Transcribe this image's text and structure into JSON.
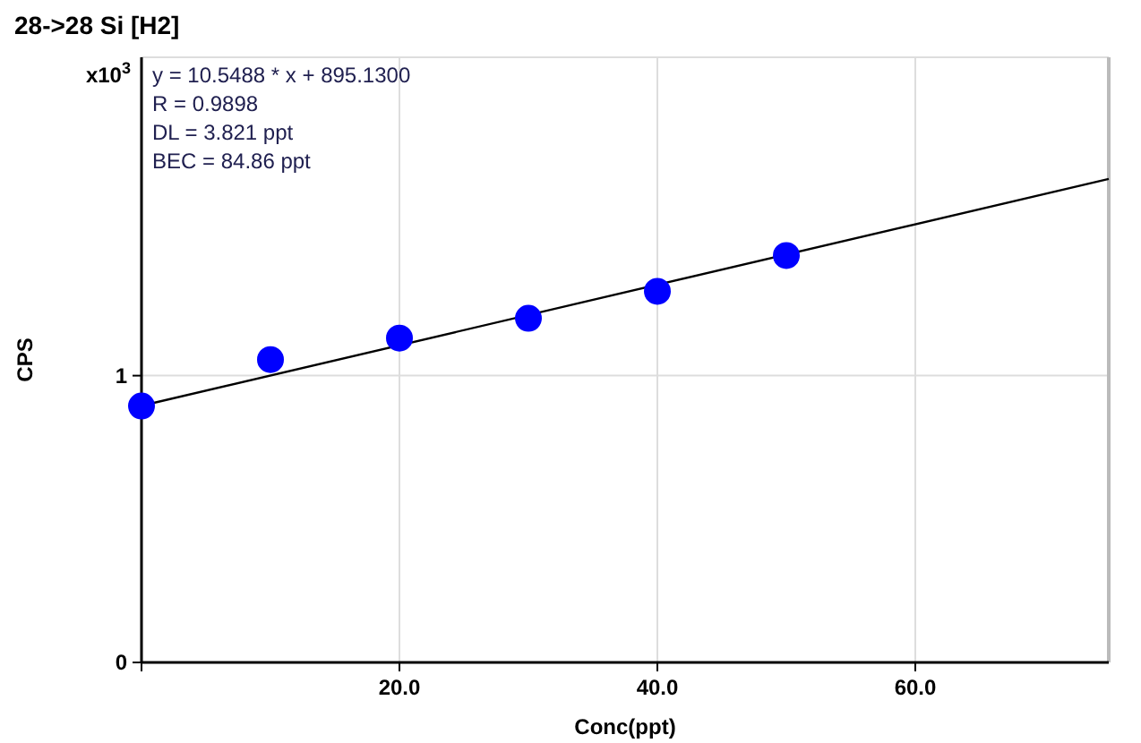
{
  "chart_data": {
    "type": "scatter",
    "title": "28->28 Si [H2]",
    "xlabel": "Conc(ppt)",
    "ylabel": "CPS",
    "annotations": [
      "x10$^{3}$",
      "y = 10.5488 * x  + 895.1300",
      "R =  0.9898",
      "DL = 3.821 ppt",
      "BEC = 84.86 ppt"
    ],
    "series": [
      {
        "marker": "circle",
        "color": "#0000ff",
        "x": [
          0,
          10,
          20,
          30,
          40,
          50
        ],
        "values": [
          0.894,
          1.056,
          1.131,
          1.2,
          1.294,
          1.419
        ]
      },
      {
        "type": "line",
        "color": "#000000",
        "x": [
          0,
          75
        ],
        "values": [
          0.895,
          1.686
        ]
      }
    ],
    "xlim": [
      0,
      75
    ],
    "ylim": [
      0,
      2.11
    ],
    "xticks": [
      {
        "value": 0,
        "label": null
      },
      {
        "value": 20,
        "label": "20.0"
      },
      {
        "value": 40,
        "label": "40.0"
      },
      {
        "value": 60,
        "label": "60.0"
      }
    ],
    "yticks": [
      0,
      1
    ],
    "grid": true,
    "line_style": "solid"
  }
}
